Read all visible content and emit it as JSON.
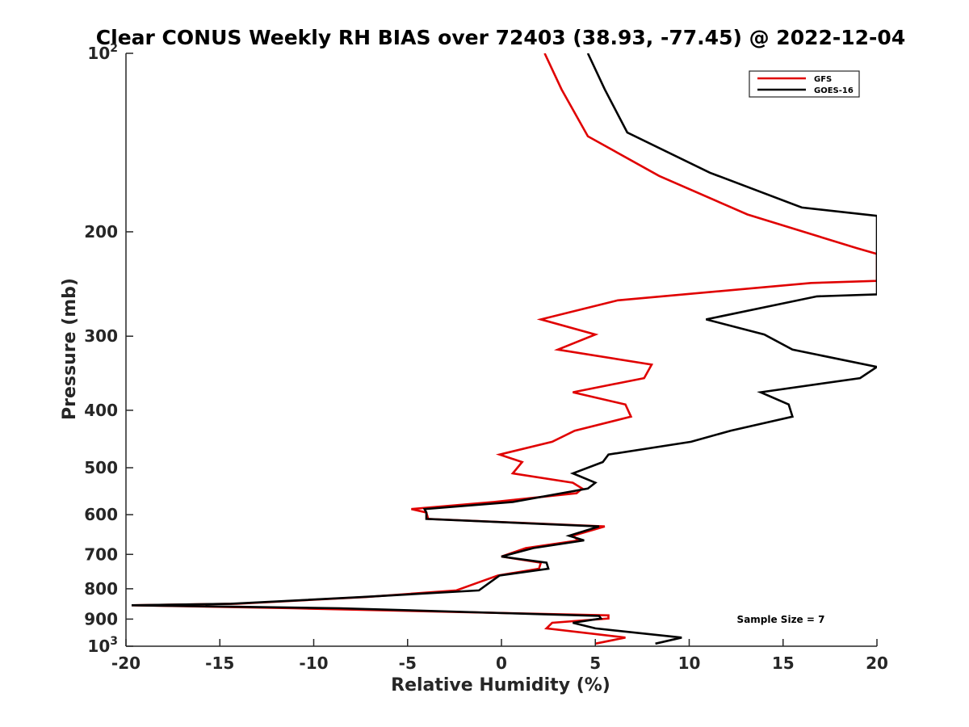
{
  "chart_data": {
    "type": "line",
    "title": "Clear CONUS Weekly RH BIAS over 72403 (38.93, -77.45) @ 2022-12-04",
    "xlabel": "Relative Humidity (%)",
    "ylabel": "Pressure (mb)",
    "xlim": [
      -20,
      20
    ],
    "ylim": [
      100,
      1000
    ],
    "y_scale": "log",
    "y_reversed": true,
    "grid": false,
    "legend_position": "top-right",
    "x_ticks": [
      "-20",
      "-15",
      "-10",
      "-5",
      "0",
      "5",
      "10",
      "15",
      "20"
    ],
    "y_ticks": [
      {
        "value": 100,
        "base": "10",
        "exp": "2"
      },
      {
        "value": 200,
        "base": "200",
        "exp": ""
      },
      {
        "value": 300,
        "base": "300",
        "exp": ""
      },
      {
        "value": 400,
        "base": "400",
        "exp": ""
      },
      {
        "value": 500,
        "base": "500",
        "exp": ""
      },
      {
        "value": 600,
        "base": "600",
        "exp": ""
      },
      {
        "value": 700,
        "base": "700",
        "exp": ""
      },
      {
        "value": 800,
        "base": "800",
        "exp": ""
      },
      {
        "value": 900,
        "base": "900",
        "exp": ""
      },
      {
        "value": 1000,
        "base": "10",
        "exp": "3"
      }
    ],
    "annotation": "Sample Size = 7",
    "series": [
      {
        "name": "GFS",
        "color": "#e00000",
        "points": [
          [
            2.3,
            100
          ],
          [
            3.2,
            115
          ],
          [
            4.6,
            138
          ],
          [
            8.4,
            161
          ],
          [
            13.1,
            187
          ],
          [
            18.9,
            213
          ],
          [
            20.0,
            218
          ],
          [
            20.0,
            242
          ],
          [
            16.5,
            244
          ],
          [
            6.2,
            261
          ],
          [
            2.1,
            281
          ],
          [
            5.0,
            298
          ],
          [
            3.0,
            316
          ],
          [
            8.0,
            335
          ],
          [
            7.6,
            353
          ],
          [
            3.8,
            373
          ],
          [
            6.6,
            391
          ],
          [
            6.9,
            410
          ],
          [
            3.9,
            433
          ],
          [
            2.7,
            452
          ],
          [
            -0.1,
            475
          ],
          [
            1.1,
            489
          ],
          [
            0.6,
            511
          ],
          [
            3.8,
            530
          ],
          [
            4.3,
            542
          ],
          [
            4.0,
            552
          ],
          [
            -0.4,
            571
          ],
          [
            -4.8,
            587
          ],
          [
            -4.0,
            595
          ],
          [
            -3.9,
            610
          ],
          [
            5.5,
            628
          ],
          [
            3.8,
            651
          ],
          [
            4.1,
            663
          ],
          [
            1.3,
            683
          ],
          [
            0.0,
            706
          ],
          [
            2.1,
            723
          ],
          [
            2.0,
            740
          ],
          [
            -0.2,
            760
          ],
          [
            -1.2,
            780
          ],
          [
            -2.4,
            805
          ],
          [
            -7.2,
            826
          ],
          [
            -14.1,
            848
          ],
          [
            -19.7,
            853
          ],
          [
            -11.1,
            863
          ],
          [
            5.7,
            887
          ],
          [
            5.7,
            898
          ],
          [
            2.7,
            913
          ],
          [
            2.4,
            933
          ],
          [
            6.6,
            967
          ],
          [
            5.0,
            990
          ]
        ]
      },
      {
        "name": "GOES-16",
        "color": "#000000",
        "points": [
          [
            4.6,
            100
          ],
          [
            5.5,
            115
          ],
          [
            6.7,
            136
          ],
          [
            11.1,
            159
          ],
          [
            16.0,
            182
          ],
          [
            20.0,
            188
          ],
          [
            20.0,
            255
          ],
          [
            16.8,
            257
          ],
          [
            10.9,
            281
          ],
          [
            14.0,
            298
          ],
          [
            15.5,
            316
          ],
          [
            20.0,
            338
          ],
          [
            19.1,
            353
          ],
          [
            13.8,
            373
          ],
          [
            15.3,
            391
          ],
          [
            15.5,
            410
          ],
          [
            12.2,
            433
          ],
          [
            10.1,
            452
          ],
          [
            5.7,
            475
          ],
          [
            5.4,
            489
          ],
          [
            3.8,
            511
          ],
          [
            5.0,
            530
          ],
          [
            4.6,
            542
          ],
          [
            0.6,
            571
          ],
          [
            -4.1,
            587
          ],
          [
            -4.0,
            595
          ],
          [
            -4.0,
            610
          ],
          [
            5.2,
            628
          ],
          [
            3.6,
            651
          ],
          [
            4.4,
            663
          ],
          [
            1.7,
            683
          ],
          [
            0.0,
            706
          ],
          [
            2.4,
            723
          ],
          [
            2.5,
            740
          ],
          [
            -0.1,
            760
          ],
          [
            -0.6,
            780
          ],
          [
            -1.2,
            805
          ],
          [
            -7.4,
            826
          ],
          [
            -14.4,
            848
          ],
          [
            -19.7,
            853
          ],
          [
            -8.6,
            863
          ],
          [
            5.2,
            889
          ],
          [
            5.3,
            898
          ],
          [
            3.8,
            913
          ],
          [
            5.0,
            933
          ],
          [
            9.6,
            967
          ],
          [
            8.2,
            990
          ]
        ]
      }
    ]
  }
}
